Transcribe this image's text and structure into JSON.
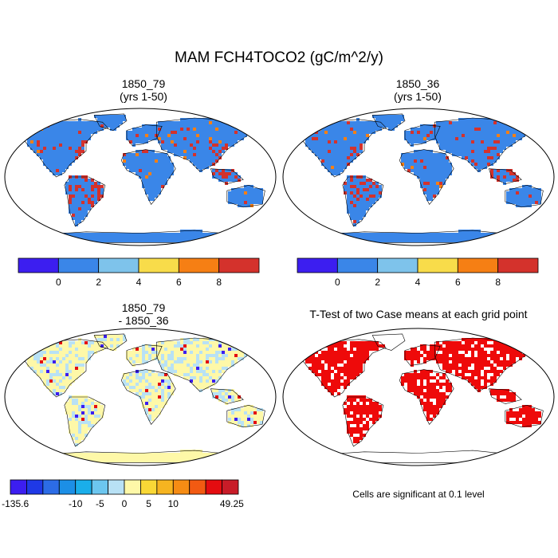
{
  "figure": {
    "title": "MAM FCH4TOCO2 (gC/m^2/y)"
  },
  "panels": [
    {
      "id": "tl",
      "title_line1": "1850_79",
      "title_line2": "(yrs 1-50)"
    },
    {
      "id": "tr",
      "title_line1": "1850_36",
      "title_line2": "(yrs 1-50)"
    },
    {
      "id": "bl",
      "title_line1": "1850_79",
      "title_line2": "- 1850_36"
    },
    {
      "id": "br",
      "title_line1": "T-Test of two Case means at each grid point",
      "title_line2": ""
    }
  ],
  "colorbar_top": {
    "colors": [
      "#3c1ef0",
      "#3a86e8",
      "#7ec3eb",
      "#f8dc4a",
      "#f67f14",
      "#d4322c"
    ],
    "tick_labels": [
      "0",
      "2",
      "4",
      "6",
      "8"
    ]
  },
  "colorbar_diff": {
    "colors": [
      "#3c1ef0",
      "#1f39e6",
      "#2c6ce6",
      "#1c8fe6",
      "#1aaeea",
      "#6cc6ef",
      "#b8e1f5",
      "#fef8a8",
      "#f9d836",
      "#f6b420",
      "#f68c14",
      "#f25a12",
      "#e40c10",
      "#c81c28"
    ],
    "tick_labels": [
      "-135.6",
      "-10",
      "-5",
      "0",
      "5",
      "10",
      "49.25"
    ]
  },
  "significance_note": "Cells are significant at 0.1 level",
  "map_colors": {
    "ocean": "#ffffff",
    "outline": "#000000",
    "land_mean": "#3a86e8",
    "hot_mean": "#d4322c",
    "mid_mean": "#f67f14",
    "land_diff": "#fef8a8",
    "diff_light_blue": "#b8e1f5",
    "diff_blue": "#3c1ef0",
    "diff_red": "#e40c10",
    "ttest_sig": "#ee0a0a"
  }
}
